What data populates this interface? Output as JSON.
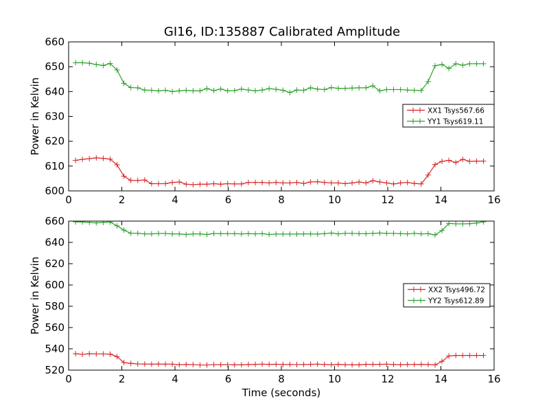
{
  "figure": {
    "title": "GI16, ID:135887 Calibrated Amplitude"
  },
  "chart_data": [
    {
      "type": "line",
      "xlabel": "",
      "ylabel": "Power in Kelvin",
      "xlim": [
        0,
        16
      ],
      "ylim": [
        600,
        660
      ],
      "xticks": [
        "0",
        "2",
        "4",
        "6",
        "8",
        "10",
        "12",
        "14",
        "16"
      ],
      "yticks": [
        "600",
        "610",
        "620",
        "630",
        "640",
        "650",
        "660"
      ],
      "legend_position": "center-right",
      "x": [
        0.26,
        0.52,
        0.78,
        1.04,
        1.3,
        1.56,
        1.82,
        2.08,
        2.34,
        2.6,
        2.86,
        3.12,
        3.38,
        3.64,
        3.9,
        4.16,
        4.42,
        4.68,
        4.94,
        5.2,
        5.46,
        5.72,
        5.98,
        6.24,
        6.5,
        6.76,
        7.02,
        7.28,
        7.54,
        7.8,
        8.06,
        8.32,
        8.58,
        8.84,
        9.1,
        9.36,
        9.62,
        9.88,
        10.14,
        10.4,
        10.66,
        10.92,
        11.18,
        11.44,
        11.7,
        11.96,
        12.22,
        12.48,
        12.74,
        13.0,
        13.26,
        13.52,
        13.78,
        14.04,
        14.3,
        14.56,
        14.82,
        15.08,
        15.34,
        15.6
      ],
      "series": [
        {
          "name": "XX1 Tsys567.66",
          "color": "#d62728",
          "values": [
            612.3,
            612.7,
            613.0,
            613.3,
            613.1,
            612.8,
            610.5,
            605.9,
            604.2,
            604.2,
            604.4,
            602.9,
            602.9,
            602.9,
            603.4,
            603.6,
            602.7,
            602.5,
            602.7,
            602.7,
            602.9,
            602.7,
            602.9,
            602.8,
            602.8,
            603.4,
            603.4,
            603.4,
            603.2,
            603.4,
            603.2,
            603.2,
            603.4,
            603.0,
            603.6,
            603.7,
            603.4,
            603.2,
            603.2,
            602.9,
            603.2,
            603.6,
            603.2,
            604.1,
            603.6,
            603.2,
            602.8,
            603.2,
            603.4,
            603.0,
            602.8,
            606.4,
            610.6,
            611.9,
            612.3,
            611.4,
            612.7,
            611.9,
            612.0,
            612.0
          ],
          "note": ""
        },
        {
          "name": "YY1 Tsys619.11",
          "color": "#2ca02c",
          "values": [
            651.6,
            651.6,
            651.4,
            650.9,
            650.5,
            651.3,
            648.7,
            643.3,
            641.6,
            641.5,
            640.6,
            640.5,
            640.3,
            640.5,
            640.0,
            640.3,
            640.5,
            640.3,
            640.3,
            641.2,
            640.4,
            641.0,
            640.3,
            640.4,
            641.0,
            640.6,
            640.3,
            640.6,
            641.2,
            640.9,
            640.5,
            639.6,
            640.6,
            640.5,
            641.5,
            641.0,
            640.8,
            641.6,
            641.3,
            641.3,
            641.4,
            641.5,
            641.5,
            642.3,
            640.3,
            640.8,
            640.8,
            640.8,
            640.6,
            640.5,
            640.4,
            644.0,
            650.4,
            650.9,
            649.3,
            651.2,
            650.6,
            651.2,
            651.2,
            651.2
          ]
        }
      ]
    },
    {
      "type": "line",
      "xlabel": "Time (seconds)",
      "ylabel": "Power in Kelvin",
      "xlim": [
        0,
        16
      ],
      "ylim": [
        520,
        660
      ],
      "xticks": [
        "0",
        "2",
        "4",
        "6",
        "8",
        "10",
        "12",
        "14",
        "16"
      ],
      "yticks": [
        "520",
        "540",
        "560",
        "580",
        "600",
        "620",
        "640",
        "660"
      ],
      "legend_position": "center-right",
      "x": [
        0.26,
        0.52,
        0.78,
        1.04,
        1.3,
        1.56,
        1.82,
        2.08,
        2.34,
        2.6,
        2.86,
        3.12,
        3.38,
        3.64,
        3.9,
        4.16,
        4.42,
        4.68,
        4.94,
        5.2,
        5.46,
        5.72,
        5.98,
        6.24,
        6.5,
        6.76,
        7.02,
        7.28,
        7.54,
        7.8,
        8.06,
        8.32,
        8.58,
        8.84,
        9.1,
        9.36,
        9.62,
        9.88,
        10.14,
        10.4,
        10.66,
        10.92,
        11.18,
        11.44,
        11.7,
        11.96,
        12.22,
        12.48,
        12.74,
        13.0,
        13.26,
        13.52,
        13.78,
        14.04,
        14.3,
        14.56,
        14.82,
        15.08,
        15.34,
        15.6
      ],
      "series": [
        {
          "name": "XX2 Tsys496.72",
          "color": "#d62728",
          "values": [
            535.4,
            534.8,
            535.4,
            535.2,
            535.2,
            535.0,
            532.7,
            527.1,
            526.3,
            525.8,
            525.7,
            525.6,
            525.7,
            525.6,
            525.6,
            525.1,
            525.3,
            525.2,
            524.8,
            524.8,
            525.2,
            525.1,
            525.2,
            525.0,
            525.0,
            525.3,
            525.4,
            525.6,
            525.4,
            525.5,
            525.3,
            525.3,
            525.2,
            525.3,
            525.4,
            525.6,
            525.3,
            525.1,
            525.4,
            525.1,
            525.0,
            525.0,
            525.4,
            525.4,
            525.4,
            525.6,
            525.3,
            525.1,
            525.3,
            525.3,
            525.4,
            525.3,
            524.9,
            528.2,
            533.3,
            533.8,
            533.8,
            533.8,
            533.8,
            533.8
          ]
        },
        {
          "name": "YY2 Tsys612.89",
          "color": "#2ca02c",
          "values": [
            659.3,
            659.2,
            658.8,
            658.3,
            658.8,
            659.1,
            655.6,
            651.5,
            648.6,
            648.6,
            648.0,
            648.0,
            648.4,
            648.4,
            648.0,
            648.0,
            647.4,
            648.0,
            648.0,
            647.4,
            648.4,
            648.2,
            648.2,
            648.2,
            648.0,
            648.2,
            648.0,
            648.2,
            647.4,
            647.8,
            647.8,
            647.8,
            647.8,
            648.0,
            648.0,
            647.8,
            648.2,
            648.8,
            648.0,
            648.5,
            648.5,
            648.2,
            648.2,
            648.5,
            648.8,
            648.5,
            648.5,
            648.2,
            648.0,
            648.5,
            648.0,
            648.2,
            647.0,
            651.1,
            657.8,
            657.4,
            657.4,
            657.6,
            658.2,
            659.3
          ]
        }
      ]
    }
  ]
}
